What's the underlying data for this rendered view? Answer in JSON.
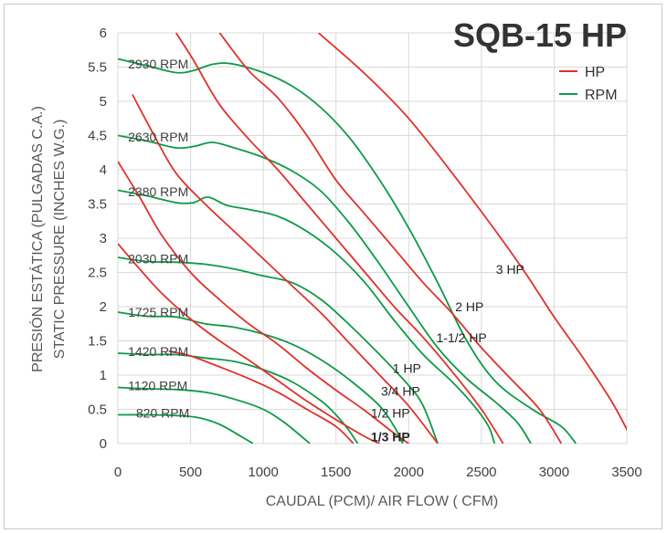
{
  "chart_data": {
    "type": "line",
    "title": "SQB-15 HP",
    "xlabel": "CAUDAL (PCM)/ AIR FLOW ( CFM)",
    "ylabel_line1": "PRESIÓN ESTÁTICA (PULGADAS C.A.)",
    "ylabel_line2": "STATIC PRESSURE (INCHES W.G.)",
    "xlim": [
      0,
      3500
    ],
    "ylim": [
      0,
      6
    ],
    "x_ticks": [
      "0",
      "500",
      "1000",
      "1500",
      "2000",
      "2500",
      "3000",
      "3500"
    ],
    "y_ticks": [
      "0",
      "0.5",
      "1",
      "1.5",
      "2",
      "2.5",
      "3",
      "3.5",
      "4",
      "4.5",
      "5",
      "5.5",
      "6"
    ],
    "grid": true,
    "legend": {
      "placement": "top-right",
      "entries": [
        {
          "name": "HP",
          "color": "#e0312c"
        },
        {
          "name": "RPM",
          "color": "#0e9a48"
        }
      ]
    },
    "colors": {
      "hp": "#e0312c",
      "rpm": "#0e9a48"
    },
    "rpm_series": [
      {
        "name": "2930 RPM",
        "points": [
          [
            0,
            5.62
          ],
          [
            200,
            5.52
          ],
          [
            400,
            5.42
          ],
          [
            520,
            5.45
          ],
          [
            650,
            5.54
          ],
          [
            780,
            5.55
          ],
          [
            1000,
            5.42
          ],
          [
            1200,
            5.22
          ],
          [
            1400,
            4.9
          ],
          [
            1600,
            4.45
          ],
          [
            1800,
            3.85
          ],
          [
            2000,
            3.15
          ],
          [
            2200,
            2.35
          ],
          [
            2400,
            1.5
          ],
          [
            2600,
            0.9
          ],
          [
            2850,
            0.5
          ],
          [
            3050,
            0.25
          ],
          [
            3150,
            0
          ]
        ]
      },
      {
        "name": "2630 RPM",
        "points": [
          [
            0,
            4.5
          ],
          [
            200,
            4.42
          ],
          [
            400,
            4.32
          ],
          [
            520,
            4.34
          ],
          [
            650,
            4.4
          ],
          [
            800,
            4.32
          ],
          [
            1000,
            4.18
          ],
          [
            1200,
            3.98
          ],
          [
            1400,
            3.68
          ],
          [
            1600,
            3.2
          ],
          [
            1800,
            2.62
          ],
          [
            2000,
            2.0
          ],
          [
            2200,
            1.4
          ],
          [
            2400,
            0.95
          ],
          [
            2600,
            0.6
          ],
          [
            2750,
            0.3
          ],
          [
            2840,
            0
          ]
        ]
      },
      {
        "name": "2380 RPM",
        "points": [
          [
            0,
            3.7
          ],
          [
            200,
            3.62
          ],
          [
            400,
            3.52
          ],
          [
            520,
            3.52
          ],
          [
            620,
            3.6
          ],
          [
            750,
            3.48
          ],
          [
            900,
            3.42
          ],
          [
            1100,
            3.32
          ],
          [
            1300,
            3.1
          ],
          [
            1500,
            2.78
          ],
          [
            1700,
            2.35
          ],
          [
            1900,
            1.8
          ],
          [
            2100,
            1.3
          ],
          [
            2300,
            0.9
          ],
          [
            2450,
            0.55
          ],
          [
            2550,
            0.25
          ],
          [
            2590,
            0
          ]
        ]
      },
      {
        "name": "2030 RPM",
        "points": [
          [
            0,
            2.72
          ],
          [
            200,
            2.66
          ],
          [
            400,
            2.65
          ],
          [
            600,
            2.62
          ],
          [
            800,
            2.55
          ],
          [
            1000,
            2.45
          ],
          [
            1200,
            2.35
          ],
          [
            1400,
            2.1
          ],
          [
            1600,
            1.72
          ],
          [
            1800,
            1.3
          ],
          [
            2000,
            0.85
          ],
          [
            2100,
            0.55
          ],
          [
            2200,
            0
          ]
        ]
      },
      {
        "name": "1725 RPM",
        "points": [
          [
            0,
            1.92
          ],
          [
            200,
            1.86
          ],
          [
            400,
            1.85
          ],
          [
            600,
            1.75
          ],
          [
            800,
            1.7
          ],
          [
            1000,
            1.6
          ],
          [
            1200,
            1.45
          ],
          [
            1400,
            1.22
          ],
          [
            1600,
            0.92
          ],
          [
            1800,
            0.55
          ],
          [
            1900,
            0.25
          ],
          [
            1960,
            0
          ]
        ]
      },
      {
        "name": "1420 RPM",
        "points": [
          [
            0,
            1.32
          ],
          [
            200,
            1.3
          ],
          [
            400,
            1.3
          ],
          [
            600,
            1.25
          ],
          [
            800,
            1.2
          ],
          [
            1000,
            1.08
          ],
          [
            1200,
            0.9
          ],
          [
            1400,
            0.62
          ],
          [
            1500,
            0.42
          ],
          [
            1580,
            0.22
          ],
          [
            1650,
            0
          ]
        ]
      },
      {
        "name": "1120 RPM",
        "points": [
          [
            0,
            0.82
          ],
          [
            200,
            0.8
          ],
          [
            400,
            0.79
          ],
          [
            600,
            0.75
          ],
          [
            800,
            0.65
          ],
          [
            1000,
            0.5
          ],
          [
            1150,
            0.3
          ],
          [
            1320,
            0
          ]
        ]
      },
      {
        "name": "820 RPM",
        "points": [
          [
            0,
            0.42
          ],
          [
            200,
            0.42
          ],
          [
            400,
            0.41
          ],
          [
            550,
            0.38
          ],
          [
            700,
            0.28
          ],
          [
            850,
            0.1
          ],
          [
            930,
            0
          ]
        ]
      }
    ],
    "rpm_labels": [
      {
        "text": "2930 RPM",
        "x": 70,
        "y": 5.55
      },
      {
        "text": "2630 RPM",
        "x": 70,
        "y": 4.48
      },
      {
        "text": "2380 RPM",
        "x": 70,
        "y": 3.68
      },
      {
        "text": "2030 RPM",
        "x": 70,
        "y": 2.7
      },
      {
        "text": "1725 RPM",
        "x": 70,
        "y": 1.92
      },
      {
        "text": "1420 RPM",
        "x": 70,
        "y": 1.35
      },
      {
        "text": "1120 RPM",
        "x": 70,
        "y": 0.85
      },
      {
        "text": "820 RPM",
        "x": 125,
        "y": 0.45
      }
    ],
    "hp_series": [
      {
        "name": "3 HP",
        "points": [
          [
            1380,
            6.0
          ],
          [
            1700,
            5.4
          ],
          [
            2000,
            4.75
          ],
          [
            2300,
            3.95
          ],
          [
            2600,
            3.1
          ],
          [
            2800,
            2.5
          ],
          [
            3000,
            1.85
          ],
          [
            3200,
            1.25
          ],
          [
            3400,
            0.6
          ],
          [
            3550,
            0
          ]
        ]
      },
      {
        "name": "2 HP",
        "points": [
          [
            700,
            6.0
          ],
          [
            900,
            5.45
          ],
          [
            1100,
            5.05
          ],
          [
            1300,
            4.5
          ],
          [
            1500,
            3.85
          ],
          [
            1700,
            3.35
          ],
          [
            1900,
            2.85
          ],
          [
            2100,
            2.35
          ],
          [
            2300,
            1.9
          ],
          [
            2500,
            1.4
          ],
          [
            2700,
            0.95
          ],
          [
            2900,
            0.5
          ],
          [
            3050,
            0
          ]
        ]
      },
      {
        "name": "1-1/2 HP",
        "points": [
          [
            400,
            6.0
          ],
          [
            520,
            5.6
          ],
          [
            700,
            4.95
          ],
          [
            900,
            4.45
          ],
          [
            1100,
            4.0
          ],
          [
            1300,
            3.5
          ],
          [
            1500,
            3.0
          ],
          [
            1700,
            2.5
          ],
          [
            1900,
            2.0
          ],
          [
            2100,
            1.55
          ],
          [
            2300,
            1.05
          ],
          [
            2500,
            0.5
          ],
          [
            2650,
            0
          ]
        ]
      },
      {
        "name": "1 HP",
        "points": [
          [
            100,
            5.1
          ],
          [
            250,
            4.5
          ],
          [
            400,
            3.95
          ],
          [
            600,
            3.5
          ],
          [
            800,
            3.1
          ],
          [
            1000,
            2.7
          ],
          [
            1200,
            2.3
          ],
          [
            1400,
            1.9
          ],
          [
            1600,
            1.45
          ],
          [
            1800,
            1.0
          ],
          [
            2000,
            0.55
          ],
          [
            2200,
            0
          ]
        ]
      },
      {
        "name": "3/4 HP",
        "points": [
          [
            0,
            4.12
          ],
          [
            150,
            3.6
          ],
          [
            300,
            3.05
          ],
          [
            500,
            2.5
          ],
          [
            700,
            2.1
          ],
          [
            900,
            1.75
          ],
          [
            1100,
            1.45
          ],
          [
            1300,
            1.1
          ],
          [
            1500,
            0.78
          ],
          [
            1700,
            0.48
          ],
          [
            1900,
            0.15
          ],
          [
            2000,
            0
          ]
        ]
      },
      {
        "name": "1/2 HP",
        "points": [
          [
            0,
            2.92
          ],
          [
            150,
            2.55
          ],
          [
            300,
            2.2
          ],
          [
            500,
            1.82
          ],
          [
            700,
            1.5
          ],
          [
            900,
            1.22
          ],
          [
            1100,
            0.92
          ],
          [
            1300,
            0.62
          ],
          [
            1500,
            0.35
          ],
          [
            1700,
            0.1
          ],
          [
            1800,
            0
          ]
        ]
      },
      {
        "name": "1/3 HP",
        "points": [
          [
            350,
            1.35
          ],
          [
            500,
            1.28
          ],
          [
            700,
            1.12
          ],
          [
            900,
            0.95
          ],
          [
            1100,
            0.75
          ],
          [
            1300,
            0.5
          ],
          [
            1500,
            0.25
          ],
          [
            1620,
            0
          ]
        ]
      }
    ],
    "hp_labels": [
      {
        "text": "3 HP",
        "x": 2600,
        "y": 2.55,
        "bold": false
      },
      {
        "text": "2 HP",
        "x": 2320,
        "y": 2.0,
        "bold": false
      },
      {
        "text": "1-1/2 HP",
        "x": 2190,
        "y": 1.55,
        "bold": false
      },
      {
        "text": "1 HP",
        "x": 1890,
        "y": 1.1,
        "bold": false
      },
      {
        "text": "3/4 HP",
        "x": 1810,
        "y": 0.77,
        "bold": false
      },
      {
        "text": "1/2  HP",
        "x": 1740,
        "y": 0.45,
        "bold": false
      },
      {
        "text": "1/3 HP",
        "x": 1740,
        "y": 0.1,
        "bold": true
      }
    ]
  }
}
